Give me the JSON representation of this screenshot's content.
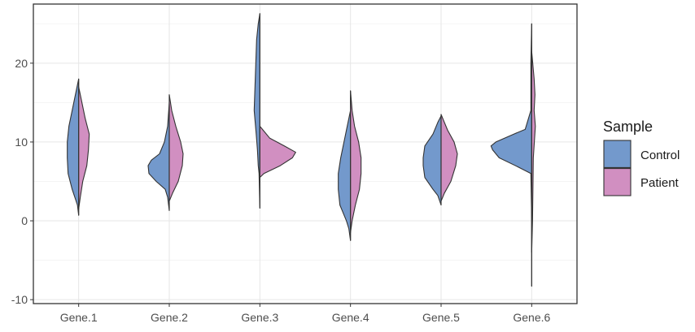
{
  "chart_data": {
    "type": "violin",
    "subtype": "split",
    "categories": [
      "Gene.1",
      "Gene.2",
      "Gene.3",
      "Gene.4",
      "Gene.5",
      "Gene.6"
    ],
    "ylim": [
      -10.5,
      27.5
    ],
    "yticks": [
      -10,
      0,
      10,
      20
    ],
    "ytick_labels": [
      "-10",
      "0",
      "10",
      "20"
    ],
    "grid": true,
    "legend": {
      "title": "Sample",
      "position": "right"
    },
    "series": [
      {
        "name": "Control",
        "color": "#7399cc",
        "side": "left",
        "violins": [
          {
            "ymin": 0.7,
            "ymax": 18.0,
            "profile": [
              [
                0.7,
                0
              ],
              [
                2,
                0.015
              ],
              [
                4,
                0.08
              ],
              [
                6,
                0.13
              ],
              [
                8,
                0.14
              ],
              [
                10,
                0.14
              ],
              [
                12,
                0.12
              ],
              [
                14,
                0.08
              ],
              [
                16,
                0.04
              ],
              [
                18,
                0
              ]
            ]
          },
          {
            "ymin": 1.3,
            "ymax": 15.0,
            "profile": [
              [
                1.3,
                0
              ],
              [
                3,
                0.02
              ],
              [
                4,
                0.05
              ],
              [
                5,
                0.16
              ],
              [
                6,
                0.25
              ],
              [
                7,
                0.26
              ],
              [
                7.7,
                0.22
              ],
              [
                8.5,
                0.12
              ],
              [
                10,
                0.06
              ],
              [
                12,
                0.02
              ],
              [
                15,
                0
              ]
            ]
          },
          {
            "ymin": 1.6,
            "ymax": 26.3,
            "profile": [
              [
                1.6,
                0
              ],
              [
                6,
                0.01
              ],
              [
                7,
                0.02
              ],
              [
                9,
                0.03
              ],
              [
                11,
                0.045
              ],
              [
                14,
                0.07
              ],
              [
                17,
                0.06
              ],
              [
                20,
                0.05
              ],
              [
                23,
                0.04
              ],
              [
                25,
                0.02
              ],
              [
                26.3,
                0
              ]
            ]
          },
          {
            "ymin": -2.5,
            "ymax": 14.0,
            "profile": [
              [
                -2.5,
                0
              ],
              [
                -1,
                0.02
              ],
              [
                0,
                0.05
              ],
              [
                1,
                0.09
              ],
              [
                2,
                0.13
              ],
              [
                4,
                0.15
              ],
              [
                6,
                0.15
              ],
              [
                8,
                0.12
              ],
              [
                10,
                0.08
              ],
              [
                12,
                0.04
              ],
              [
                14,
                0
              ]
            ]
          },
          {
            "ymin": 2.0,
            "ymax": 13.3,
            "profile": [
              [
                2,
                0
              ],
              [
                3.2,
                0.04
              ],
              [
                4,
                0.1
              ],
              [
                5.5,
                0.2
              ],
              [
                7,
                0.22
              ],
              [
                8,
                0.22
              ],
              [
                9.5,
                0.2
              ],
              [
                11,
                0.1
              ],
              [
                12.5,
                0.04
              ],
              [
                13.3,
                0
              ]
            ]
          },
          {
            "ymin": -8.3,
            "ymax": 25.0,
            "profile": [
              [
                -8.3,
                0
              ],
              [
                0,
                0
              ],
              [
                6,
                0.01
              ],
              [
                7,
                0.2
              ],
              [
                8,
                0.4
              ],
              [
                9,
                0.48
              ],
              [
                9.5,
                0.5
              ],
              [
                10,
                0.44
              ],
              [
                11,
                0.22
              ],
              [
                11.6,
                0.08
              ],
              [
                14,
                0.01
              ],
              [
                20,
                0.01
              ],
              [
                25,
                0
              ]
            ]
          }
        ]
      },
      {
        "name": "Patient",
        "color": "#d18fc1",
        "side": "right",
        "violins": [
          {
            "ymin": 1.5,
            "ymax": 17.0,
            "profile": [
              [
                1.5,
                0
              ],
              [
                3,
                0.02
              ],
              [
                5,
                0.05
              ],
              [
                7,
                0.1
              ],
              [
                9,
                0.12
              ],
              [
                11,
                0.13
              ],
              [
                13,
                0.08
              ],
              [
                15,
                0.04
              ],
              [
                17,
                0
              ]
            ]
          },
          {
            "ymin": 2.5,
            "ymax": 16.0,
            "profile": [
              [
                2.5,
                0
              ],
              [
                3.5,
                0.04
              ],
              [
                5,
                0.11
              ],
              [
                7,
                0.16
              ],
              [
                8.5,
                0.17
              ],
              [
                10,
                0.14
              ],
              [
                12,
                0.08
              ],
              [
                14,
                0.03
              ],
              [
                16,
                0
              ]
            ]
          },
          {
            "ymin": 5.5,
            "ymax": 12.0,
            "profile": [
              [
                5.5,
                0
              ],
              [
                6,
                0.05
              ],
              [
                7,
                0.25
              ],
              [
                8,
                0.4
              ],
              [
                8.7,
                0.44
              ],
              [
                9.5,
                0.3
              ],
              [
                10.5,
                0.12
              ],
              [
                11.5,
                0.04
              ],
              [
                12,
                0
              ]
            ]
          },
          {
            "ymin": -1.5,
            "ymax": 16.5,
            "profile": [
              [
                -1.5,
                0
              ],
              [
                0,
                0.02
              ],
              [
                2,
                0.06
              ],
              [
                4,
                0.11
              ],
              [
                6,
                0.13
              ],
              [
                8,
                0.13
              ],
              [
                10,
                0.1
              ],
              [
                12,
                0.05
              ],
              [
                14,
                0.02
              ],
              [
                16.5,
                0
              ]
            ]
          },
          {
            "ymin": 2.5,
            "ymax": 13.5,
            "profile": [
              [
                2.5,
                0
              ],
              [
                3.5,
                0.04
              ],
              [
                5,
                0.12
              ],
              [
                7,
                0.18
              ],
              [
                8.5,
                0.2
              ],
              [
                10,
                0.16
              ],
              [
                11.5,
                0.08
              ],
              [
                13,
                0.02
              ],
              [
                13.5,
                0
              ]
            ]
          },
          {
            "ymin": -4.0,
            "ymax": 21.5,
            "profile": [
              [
                -4,
                0
              ],
              [
                0,
                0.01
              ],
              [
                4,
                0.015
              ],
              [
                8,
                0.02
              ],
              [
                12,
                0.045
              ],
              [
                14,
                0.03
              ],
              [
                16,
                0.04
              ],
              [
                18,
                0.03
              ],
              [
                21.5,
                0
              ]
            ]
          }
        ]
      }
    ]
  }
}
